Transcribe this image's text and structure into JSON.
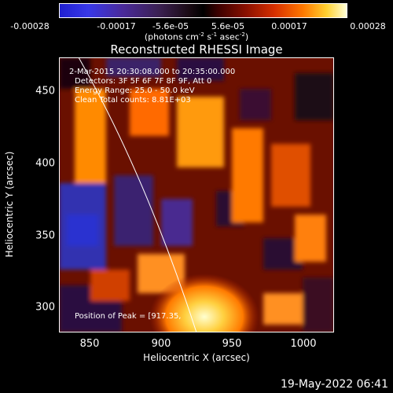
{
  "colorbar": {
    "ticks": [
      "-0.00028",
      "-0.00017",
      "-5.6e-05",
      "5.6e-05",
      "0.00017",
      "0.00028"
    ],
    "unit_prefix": "(photons cm",
    "unit_exp1": "-2",
    "unit_mid": " s",
    "unit_exp2": "-1",
    "unit_mid2": " asec",
    "unit_exp3": "-2",
    "unit_suffix": ")",
    "colors": [
      "#2020d0",
      "#3a2050",
      "#000000",
      "#8a1000",
      "#ff7a00",
      "#ffffd8"
    ]
  },
  "title": "Reconstructed RHESSI Image",
  "annotations": {
    "time": "2-Mar-2015 20:30:08.000 to 20:35:00.000",
    "detectors": "Detectors: 3F 5F 6F 7F 8F 9F, Att 0",
    "energy": "Energy Range: 25.0 - 50.0 keV",
    "clean": "Clean    Total counts: 8.81E+03",
    "peak": "Position of Peak = [917.35,"
  },
  "axes": {
    "xlabel": "Heliocentric X (arcsec)",
    "ylabel": "Heliocentric Y (arcsec)",
    "xticks": [
      "850",
      "900",
      "950",
      "1000"
    ],
    "yticks": [
      "450",
      "400",
      "350",
      "300"
    ]
  },
  "footer_date": "19-May-2022 06:41"
}
